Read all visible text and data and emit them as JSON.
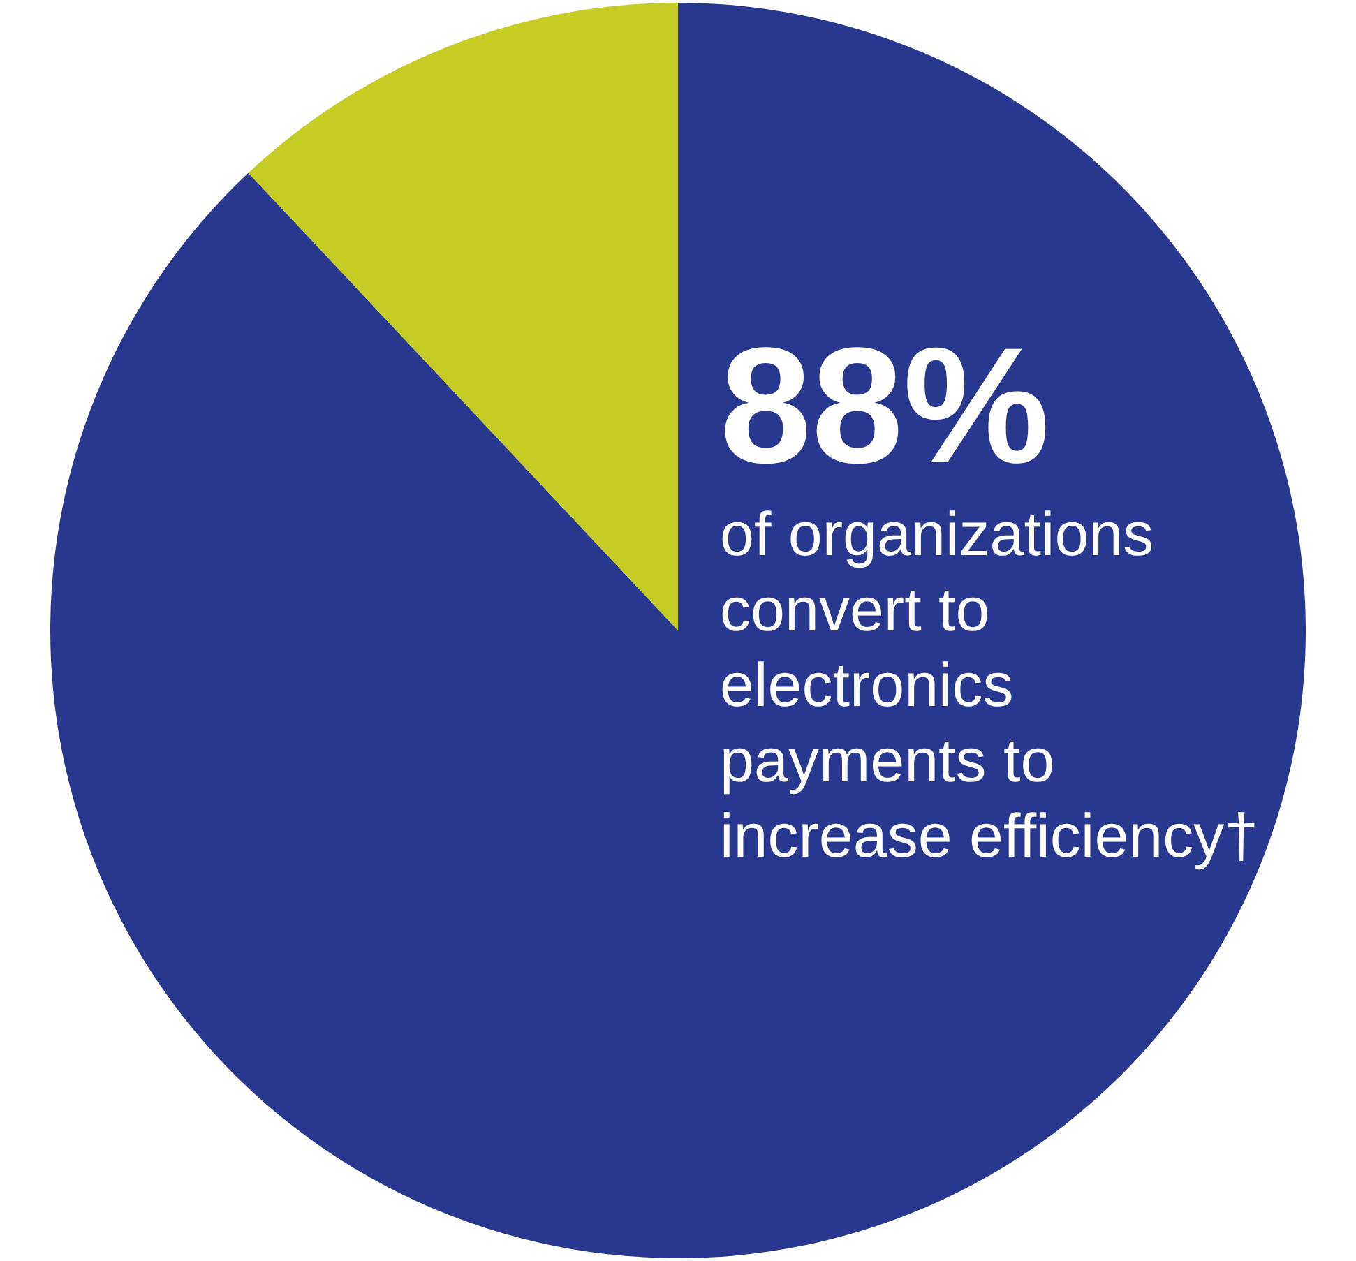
{
  "chart_data": {
    "type": "pie",
    "categories": [
      "of organizations convert to electronics payments to increase efficiency†",
      null
    ],
    "values": [
      88,
      12
    ],
    "colors": [
      "#28388f",
      "#c5cd24"
    ],
    "value_labels": [
      "88%",
      null
    ],
    "legend": false
  }
}
